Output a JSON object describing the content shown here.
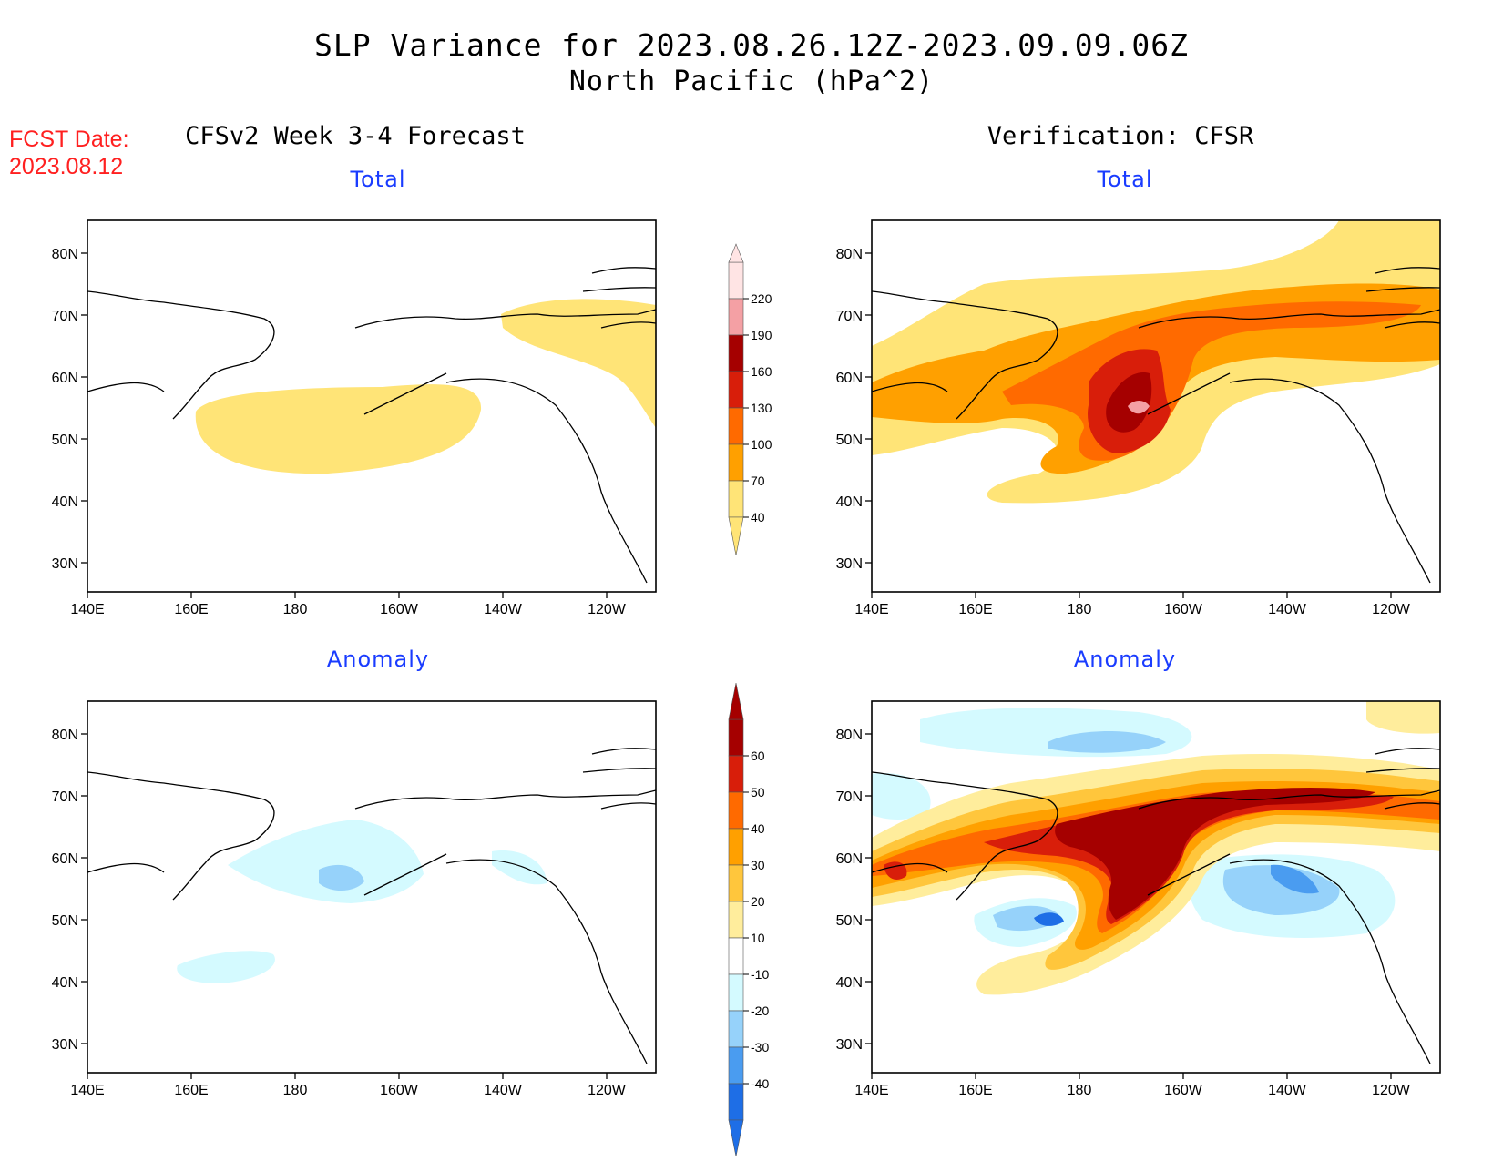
{
  "title": {
    "line1": "SLP Variance for 2023.08.26.12Z-2023.09.09.06Z",
    "line2": "North Pacific (hPa^2)"
  },
  "fcst": {
    "label": "FCST Date:",
    "date": "2023.08.12"
  },
  "columns": {
    "left": "CFSv2 Week 3-4 Forecast",
    "right": "Verification: CFSR"
  },
  "panels": {
    "total": "Total",
    "anomaly": "Anomaly"
  },
  "map_axes": {
    "lon_ticks": [
      "140E",
      "160E",
      "180",
      "160W",
      "140W",
      "120W"
    ],
    "lat_ticks": [
      "80N",
      "70N",
      "60N",
      "50N",
      "40N",
      "30N"
    ]
  },
  "legends": {
    "total": {
      "levels": [
        "220",
        "190",
        "160",
        "130",
        "100",
        "70",
        "40"
      ],
      "colors": [
        "#ffe4e4",
        "#f4a0a4",
        "#a50000",
        "#d81e0a",
        "#ff6a00",
        "#ffa000",
        "#ffe477"
      ]
    },
    "anomaly": {
      "levels": [
        "60",
        "50",
        "40",
        "30",
        "20",
        "10",
        "-10",
        "-20",
        "-30",
        "-40"
      ],
      "colors": [
        "#a50000",
        "#d81e0a",
        "#ff6a00",
        "#ffa000",
        "#ffc63c",
        "#ffed9c",
        "#ffffff",
        "#d4faff",
        "#96d2fa",
        "#4a9cf0",
        "#1e6ee6"
      ]
    }
  }
}
